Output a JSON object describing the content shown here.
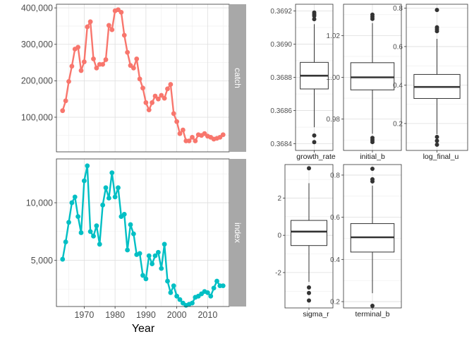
{
  "chart_data": [
    {
      "type": "line",
      "xlabel": "Year",
      "x_ticks": [
        1970,
        1980,
        1990,
        2000,
        2010
      ],
      "xlim": [
        1961,
        2017
      ],
      "grid": true,
      "facets": [
        {
          "name": "catch",
          "strip_label": "catch",
          "color": "#F8766D",
          "ylim": [
            5000,
            410000
          ],
          "y_ticks": [
            100000,
            200000,
            300000,
            400000
          ],
          "y_tick_labels": [
            "100,000",
            "200,000",
            "300,000",
            "400,000"
          ],
          "x": [
            1963,
            1964,
            1965,
            1966,
            1967,
            1968,
            1969,
            1970,
            1971,
            1972,
            1973,
            1974,
            1975,
            1976,
            1977,
            1978,
            1979,
            1980,
            1981,
            1982,
            1983,
            1984,
            1985,
            1986,
            1987,
            1988,
            1989,
            1990,
            1991,
            1992,
            1993,
            1994,
            1995,
            1996,
            1997,
            1998,
            1999,
            2000,
            2001,
            2002,
            2003,
            2004,
            2005,
            2006,
            2007,
            2008,
            2009,
            2010,
            2011,
            2012,
            2013,
            2014,
            2015
          ],
          "y": [
            118000,
            145000,
            198000,
            240000,
            287000,
            292000,
            228000,
            252000,
            348000,
            362000,
            260000,
            235000,
            245000,
            245000,
            258000,
            352000,
            340000,
            392000,
            395000,
            388000,
            325000,
            278000,
            242000,
            235000,
            260000,
            205000,
            180000,
            140000,
            120000,
            140000,
            158000,
            150000,
            160000,
            152000,
            178000,
            190000,
            110000,
            88000,
            55000,
            65000,
            35000,
            35000,
            45000,
            35000,
            52000,
            50000,
            55000,
            48000,
            45000,
            40000,
            42000,
            45000,
            52000
          ]
        },
        {
          "name": "index",
          "strip_label": "index",
          "color": "#00BFC4",
          "ylim": [
            1000,
            13800
          ],
          "y_ticks": [
            5000,
            10000
          ],
          "y_tick_labels": [
            "5,000",
            "10,000"
          ],
          "x": [
            1963,
            1964,
            1965,
            1966,
            1967,
            1968,
            1969,
            1970,
            1971,
            1972,
            1973,
            1974,
            1975,
            1976,
            1977,
            1978,
            1979,
            1980,
            1981,
            1982,
            1983,
            1984,
            1985,
            1986,
            1987,
            1988,
            1989,
            1990,
            1991,
            1992,
            1993,
            1994,
            1995,
            1996,
            1997,
            1998,
            1999,
            2000,
            2001,
            2002,
            2003,
            2004,
            2005,
            2006,
            2007,
            2008,
            2009,
            2010,
            2011,
            2012,
            2013,
            2014,
            2015
          ],
          "y": [
            5100,
            6600,
            8300,
            10000,
            10500,
            8800,
            7400,
            11900,
            13200,
            7500,
            7100,
            8000,
            6400,
            9800,
            11300,
            10400,
            12600,
            10500,
            11300,
            8800,
            9000,
            5900,
            8100,
            7300,
            5500,
            5600,
            3700,
            3400,
            5400,
            4700,
            5400,
            5700,
            4300,
            6400,
            3200,
            2200,
            2800,
            1900,
            1600,
            1300,
            1100,
            1200,
            1300,
            1800,
            1900,
            2100,
            2300,
            2200,
            1900,
            2600,
            3200,
            2800,
            2800
          ]
        }
      ]
    },
    {
      "type": "boxplot",
      "name": "growth_rate",
      "xlabel": "growth_rate",
      "ylim": [
        0.36836,
        0.36924
      ],
      "y_ticks": [
        0.3684,
        0.3686,
        0.3688,
        0.369,
        0.3692
      ],
      "y_tick_labels": [
        "0.3684",
        "0.3686",
        "0.3688",
        "0.3690",
        "0.3692"
      ],
      "q1": 0.36873,
      "median": 0.36881,
      "q3": 0.36889,
      "whisker_low": 0.3685,
      "whisker_high": 0.36912,
      "outliers": [
        0.36845,
        0.36841,
        0.36915,
        0.36917,
        0.36918,
        0.36919
      ]
    },
    {
      "type": "boxplot",
      "name": "initial_b",
      "xlabel": "initial_b",
      "ylim": [
        0.965,
        1.035
      ],
      "y_ticks": [
        0.98,
        1.0,
        1.02
      ],
      "y_tick_labels": [
        "0.98",
        "1.00",
        "1.02"
      ],
      "q1": 0.994,
      "median": 1.0,
      "q3": 1.007,
      "whisker_low": 0.973,
      "whisker_high": 1.026,
      "outliers": [
        0.971,
        0.97,
        0.969,
        1.028,
        1.029,
        1.03
      ]
    },
    {
      "type": "boxplot",
      "name": "log_final_u",
      "xlabel": "log_final_u",
      "ylim": [
        0.06,
        0.82
      ],
      "y_ticks": [
        0.2,
        0.4,
        0.6,
        0.8
      ],
      "y_tick_labels": [
        "0.2",
        "0.4",
        "0.6",
        "0.8"
      ],
      "q1": 0.33,
      "median": 0.39,
      "q3": 0.455,
      "whisker_low": 0.145,
      "whisker_high": 0.64,
      "outliers": [
        0.13,
        0.11,
        0.09,
        0.68,
        0.69,
        0.7,
        0.79
      ]
    },
    {
      "type": "boxplot",
      "name": "sigma_r",
      "xlabel": "sigma_r",
      "ylim": [
        -3.9,
        3.8
      ],
      "y_ticks": [
        -2,
        0,
        2
      ],
      "y_tick_labels": [
        "-2",
        "0",
        "2"
      ],
      "q1": -0.55,
      "median": 0.2,
      "q3": 0.8,
      "whisker_low": -2.5,
      "whisker_high": 2.8,
      "outliers": [
        -2.8,
        -3.1,
        -3.5,
        3.6
      ]
    },
    {
      "type": "boxplot",
      "name": "terminal_b",
      "xlabel": "terminal_b",
      "ylim": [
        0.17,
        0.85
      ],
      "y_ticks": [
        0.2,
        0.4,
        0.6,
        0.8
      ],
      "y_tick_labels": [
        "0.2",
        "0.4",
        "0.6",
        "0.8"
      ],
      "q1": 0.435,
      "median": 0.505,
      "q3": 0.57,
      "whisker_low": 0.24,
      "whisker_high": 0.75,
      "outliers": [
        0.18,
        0.77,
        0.78,
        0.83
      ]
    }
  ]
}
